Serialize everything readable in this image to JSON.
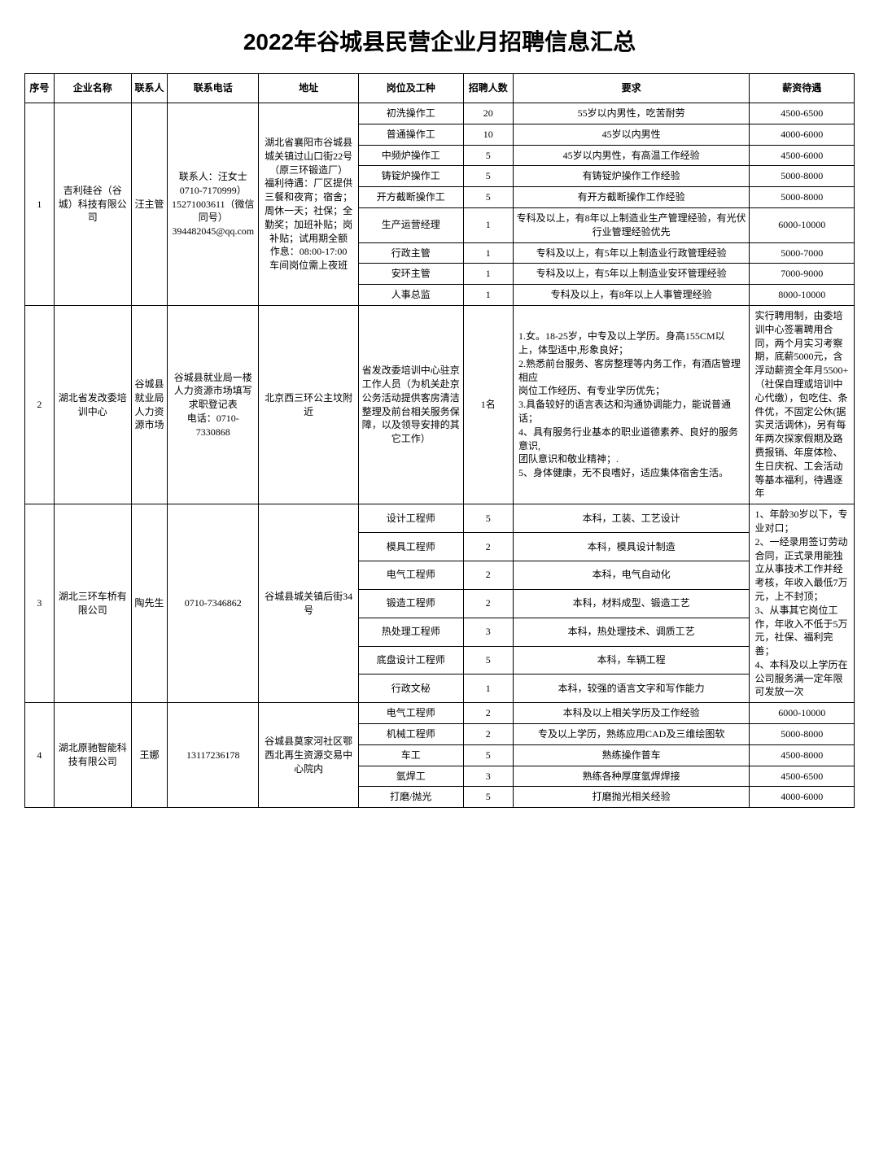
{
  "title": "2022年谷城县民营企业月招聘信息汇总",
  "headers": {
    "seq": "序号",
    "company": "企业名称",
    "contact": "联系人",
    "phone": "联系电话",
    "address": "地址",
    "position": "岗位及工种",
    "count": "招聘人数",
    "req": "要求",
    "salary": "薪资待遇"
  },
  "rows": [
    {
      "seq": "1",
      "company": "吉利硅谷（谷城）科技有限公司",
      "contact": "汪主管",
      "phone": "联系人：汪女士\n0710-7170999）\n15271003611（微信同号）\n394482045@qq.com",
      "address": "湖北省襄阳市谷城县城关镇过山口街22号（原三环锻造厂）\n福利待遇：厂区提供三餐和夜宵；宿舍；周休一天；社保；全勤奖；加班补贴；岗补贴；试用期全额\n作息：08:00-17:00　车间岗位需上夜班",
      "positions": [
        {
          "name": "初洗操作工",
          "count": "20",
          "req": "55岁以内男性，吃苦耐劳",
          "salary": "4500-6500"
        },
        {
          "name": "普通操作工",
          "count": "10",
          "req": "45岁以内男性",
          "salary": "4000-6000"
        },
        {
          "name": "中频炉操作工",
          "count": "5",
          "req": "45岁以内男性，有高温工作经验",
          "salary": "4500-6000"
        },
        {
          "name": "铸锭炉操作工",
          "count": "5",
          "req": "有铸锭炉操作工作经验",
          "salary": "5000-8000"
        },
        {
          "name": "开方截断操作工",
          "count": "5",
          "req": "有开方截断操作工作经验",
          "salary": "5000-8000"
        },
        {
          "name": "生产运营经理",
          "count": "1",
          "req": "专科及以上，有8年以上制造业生产管理经验，有光伏行业管理经验优先",
          "salary": "6000-10000"
        },
        {
          "name": "行政主管",
          "count": "1",
          "req": "专科及以上，有5年以上制造业行政管理经验",
          "salary": "5000-7000"
        },
        {
          "name": "安环主管",
          "count": "1",
          "req": "专科及以上，有5年以上制造业安环管理经验",
          "salary": "7000-9000"
        },
        {
          "name": "人事总监",
          "count": "1",
          "req": "专科及以上，有8年以上人事管理经验",
          "salary": "8000-10000"
        }
      ]
    },
    {
      "seq": "2",
      "company": "湖北省发改委培训中心",
      "contact": "谷城县就业局人力资源市场",
      "phone": "谷城县就业局一楼人力资源市场填写求职登记表\n电话：0710-7330868",
      "address": "北京西三环公主坟附近",
      "positions": [
        {
          "name": "省发改委培训中心驻京工作人员（为机关赴京公务活动提供客房清洁整理及前台相关服务保障，以及领导安排的其它工作）",
          "count": "1名",
          "req": "1.女。18-25岁，中专及以上学历。身高155CM以上，体型适中,形象良好；\n2.熟悉前台服务、客房整理等内务工作，有酒店管理相应\n岗位工作经历、有专业学历优先；\n3.具备较好的语言表达和沟通协调能力，能说普通话；\n4、具有服务行业基本的职业道德素养、良好的服务意识,\n团队意识和敬业精神；.\n5、身体健康，无不良嗜好，适应集体宿舍生活。",
          "salary": "实行聘用制，由委培训中心签署聘用合同，两个月实习考察\n期，底薪5000元，含浮动薪资全年月5500+（社保自理或培训中心代缴），包吃住、条件优，不固定公休(据实灵活调休)，另有每年两次探家假期及路费报销、年度体检、生日庆祝、工会活动等基本福利，待遇逐年"
        }
      ]
    },
    {
      "seq": "3",
      "company": "湖北三环车桥有限公司",
      "contact": "陶先生",
      "phone": "0710-7346862",
      "address": "谷城县城关镇后街34号",
      "salary_merged": "1、年龄30岁以下，专业对口；\n2、一经录用签订劳动合同，正式录用能独立从事技术工作并经考核，年收入最低7万元，上不封顶；\n3、从事其它岗位工作，年收入不低于5万元，社保、福利完善；\n4、本科及以上学历在公司服务满一定年限可发放一次",
      "positions": [
        {
          "name": "设计工程师",
          "count": "5",
          "req": "本科，工装、工艺设计"
        },
        {
          "name": "模具工程师",
          "count": "2",
          "req": "本科，模具设计制造"
        },
        {
          "name": "电气工程师",
          "count": "2",
          "req": "本科，电气自动化"
        },
        {
          "name": "锻造工程师",
          "count": "2",
          "req": "本科，材料成型、锻造工艺"
        },
        {
          "name": "热处理工程师",
          "count": "3",
          "req": "本科，热处理技术、调质工艺"
        },
        {
          "name": "底盘设计工程师",
          "count": "5",
          "req": "本科，车辆工程"
        },
        {
          "name": "行政文秘",
          "count": "1",
          "req": "本科，较强的语言文字和写作能力"
        }
      ]
    },
    {
      "seq": "4",
      "company": "湖北原驰智能科技有限公司",
      "contact": "王娜",
      "phone": "13117236178",
      "address": "谷城县莫家河社区鄂西北再生资源交易中心院内",
      "positions": [
        {
          "name": "电气工程师",
          "count": "2",
          "req": "本科及以上相关学历及工作经验",
          "salary": "6000-10000"
        },
        {
          "name": "机械工程师",
          "count": "2",
          "req": "专及以上学历，熟练应用CAD及三维绘图软",
          "salary": "5000-8000"
        },
        {
          "name": "车工",
          "count": "5",
          "req": "熟练操作普车",
          "salary": "4500-8000"
        },
        {
          "name": "氩焊工",
          "count": "3",
          "req": "熟练各种厚度氩焊焊接",
          "salary": "4500-6500"
        },
        {
          "name": "打磨/抛光",
          "count": "5",
          "req": "打磨抛光相关经验",
          "salary": "4000-6000"
        }
      ]
    }
  ]
}
